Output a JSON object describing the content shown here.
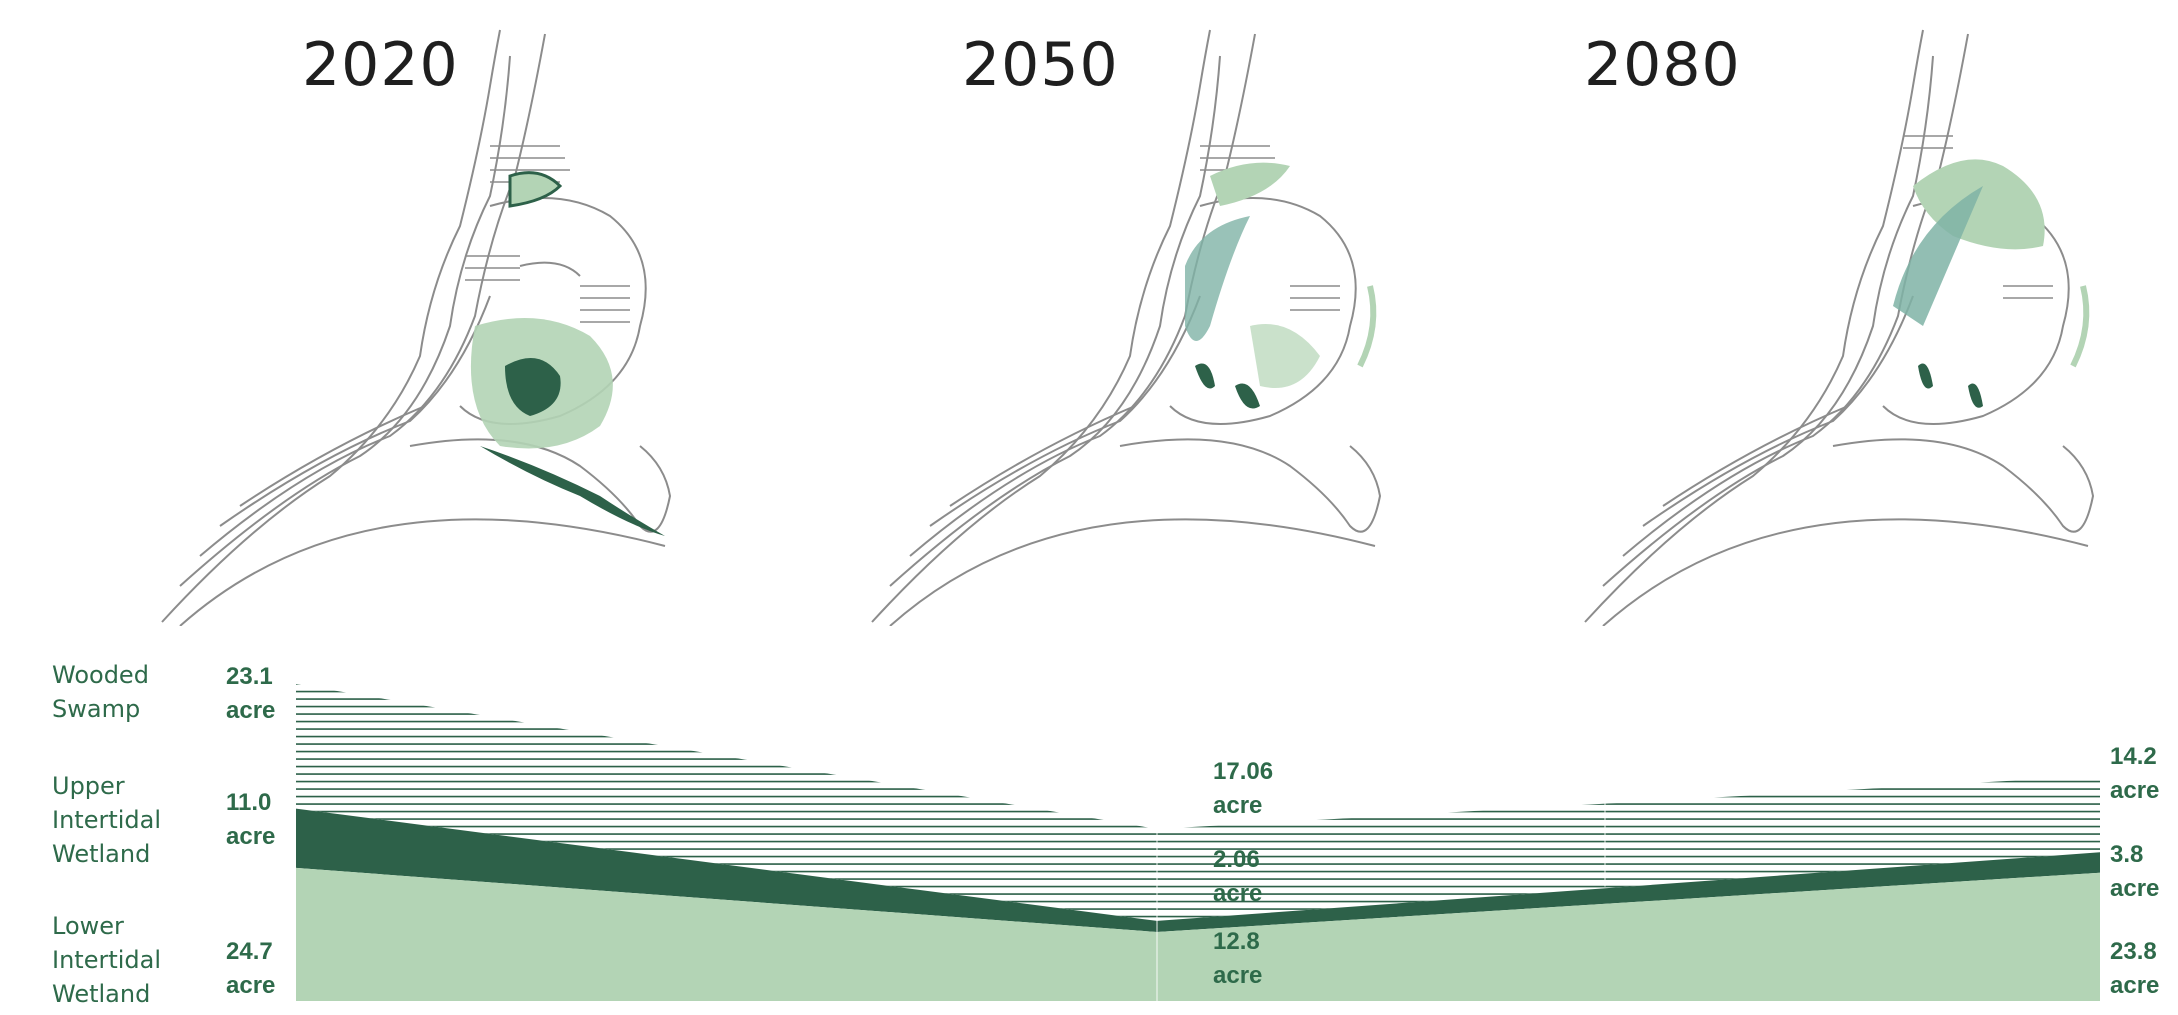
{
  "years": [
    "2020",
    "2050",
    "2080"
  ],
  "colors": {
    "lower_intertidal": "#b3d4b5",
    "upper_intertidal": "#2d6149",
    "wooded_swamp_hatch": "#2d6149",
    "map_outline": "#8c8c8c",
    "text": "#2e6a4a"
  },
  "chart_data": {
    "type": "area",
    "title": "",
    "x": [
      "2020",
      "2050",
      "2080"
    ],
    "unit": "acre",
    "stacked": true,
    "series": [
      {
        "name": "Lower\nIntertidal\nWetland",
        "values": [
          24.7,
          12.8,
          23.8
        ],
        "labels": [
          "24.7",
          "12.8",
          "23.8"
        ],
        "style": "solid light green"
      },
      {
        "name": "Upper\nIntertidal\nWetland",
        "values": [
          11.0,
          2.06,
          3.8
        ],
        "labels": [
          "11.0",
          "2.06",
          "3.8"
        ],
        "style": "solid dark green"
      },
      {
        "name": "Wooded\nSwamp",
        "values": [
          23.1,
          17.06,
          14.2
        ],
        "labels": [
          "23.1",
          "17.06",
          "14.2"
        ],
        "style": "horizontal hatch"
      }
    ],
    "legend": "left",
    "grid": false
  }
}
